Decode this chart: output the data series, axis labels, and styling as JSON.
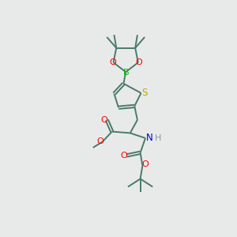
{
  "background_color": "#e8eaea",
  "bond_color": "#4a7a6a",
  "atom_colors": {
    "O": "#ff0000",
    "B": "#00bb00",
    "S": "#bbaa00",
    "N": "#0000cc",
    "H": "#889999",
    "C": "#4a7a6a"
  },
  "figsize": [
    3.0,
    3.0
  ],
  "dpi": 100
}
